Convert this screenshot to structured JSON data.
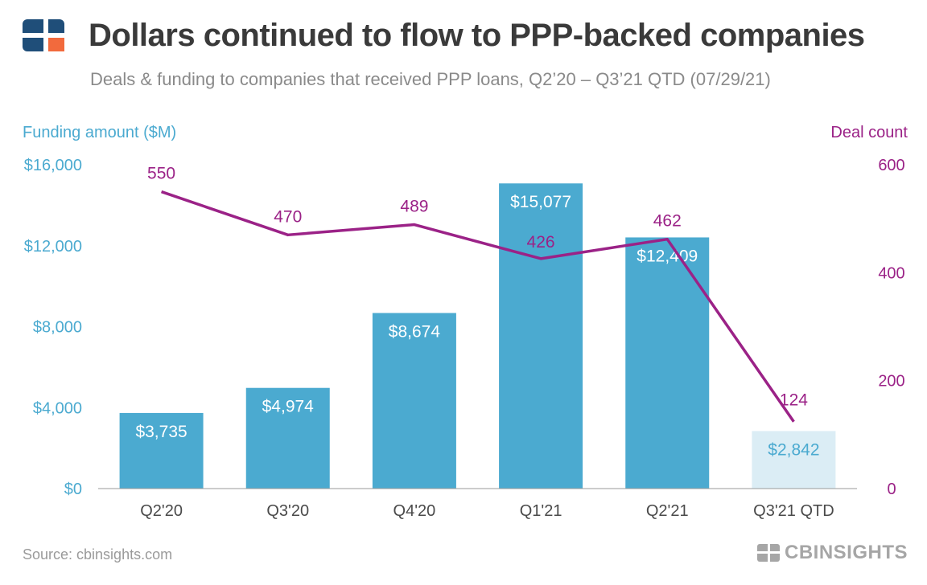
{
  "title": "Dollars continued to flow to PPP-backed companies",
  "subtitle": "Deals & funding to companies that received PPP loans, Q2’20 – Q3’21 QTD (07/29/21)",
  "source": "Source: cbinsights.com",
  "brand": {
    "text": "CBINSIGHTS"
  },
  "colors": {
    "bar": "#4baad0",
    "bar_partial": "#dbedf5",
    "line": "#9b2287",
    "axis_left": "#4baad0",
    "axis_right": "#9b2287",
    "title": "#3a3a3a",
    "logo_blue": "#1f4e79",
    "logo_orange": "#f26a3d"
  },
  "chart_data": {
    "type": "bar+line",
    "categories": [
      "Q2'20",
      "Q3'20",
      "Q4'20",
      "Q1'21",
      "Q2'21",
      "Q3'21 QTD"
    ],
    "bar_labels": [
      "$3,735",
      "$4,974",
      "$8,674",
      "$15,077",
      "$12,409",
      "$2,842"
    ],
    "series": [
      {
        "name": "Funding amount ($M)",
        "type": "bar",
        "axis": "left",
        "values": [
          3735,
          4974,
          8674,
          15077,
          12409,
          2842
        ]
      },
      {
        "name": "Deal count",
        "type": "line",
        "axis": "right",
        "values": [
          550,
          470,
          489,
          426,
          462,
          124
        ]
      }
    ],
    "y_left": {
      "label": "Funding amount ($M)",
      "range": [
        0,
        16000
      ],
      "ticks": [
        0,
        4000,
        8000,
        12000,
        16000
      ],
      "tick_labels": [
        "$0",
        "$4,000",
        "$8,000",
        "$12,000",
        "$16,000"
      ]
    },
    "y_right": {
      "label": "Deal count",
      "range": [
        0,
        600
      ],
      "ticks": [
        0,
        200,
        400,
        600
      ],
      "tick_labels": [
        "0",
        "200",
        "400",
        "600"
      ]
    },
    "highlighted_partial_period": "Q3'21 QTD",
    "grid": false,
    "legend": "none"
  }
}
